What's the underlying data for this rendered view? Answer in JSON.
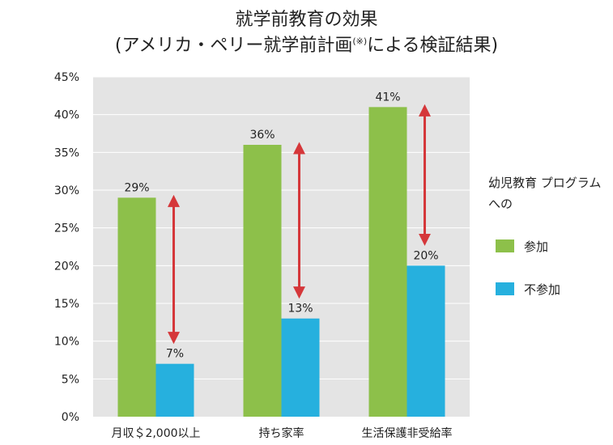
{
  "title_line1": "就学前教育の効果",
  "title_line2": "(アメリカ・ペリー就学前計画",
  "title_note": "(※)",
  "title_line2_end": "による検証結果)",
  "legend": {
    "title": "幼児教育 プログラムへの",
    "items": [
      {
        "label": "参加",
        "color": "#8dc04a"
      },
      {
        "label": "不参加",
        "color": "#26b0de"
      }
    ]
  },
  "colors": {
    "plot_bg": "#e4e4e4",
    "grid": "#ffffff",
    "arrow": "#d5373a"
  },
  "chart_data": {
    "type": "bar",
    "categories": [
      "月収＄2,000以上",
      "持ち家率",
      "生活保護非受給率"
    ],
    "series": [
      {
        "name": "参加",
        "values": [
          29,
          36,
          41
        ],
        "color": "#8dc04a"
      },
      {
        "name": "不参加",
        "values": [
          7,
          13,
          20
        ],
        "color": "#26b0de"
      }
    ],
    "data_labels": [
      [
        "29%",
        "36%",
        "41%"
      ],
      [
        "7%",
        "13%",
        "20%"
      ]
    ],
    "yticks": [
      "0%",
      "5%",
      "10%",
      "15%",
      "20%",
      "25%",
      "30%",
      "35%",
      "40%",
      "45%"
    ],
    "ylim": [
      0,
      45
    ],
    "grid": true,
    "legend_position": "right"
  }
}
